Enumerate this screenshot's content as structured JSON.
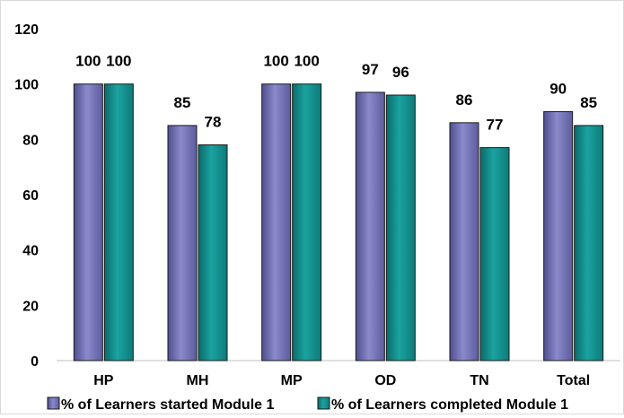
{
  "chart_data": {
    "type": "bar",
    "title": "",
    "xlabel": "",
    "ylabel": "",
    "categories": [
      "HP",
      "MH",
      "MP",
      "OD",
      "TN",
      "Total"
    ],
    "series": [
      {
        "name": "% of Learners started Module 1",
        "values": [
          100,
          85,
          100,
          97,
          86,
          90
        ],
        "color": "#6f6fb0"
      },
      {
        "name": "% of Learners completed Module 1",
        "values": [
          100,
          78,
          100,
          96,
          77,
          85
        ],
        "color": "#138c8c"
      }
    ],
    "data_labels": [
      [
        "100",
        "85",
        "100",
        "97",
        "86",
        "90"
      ],
      [
        "100",
        "78",
        "100",
        "96",
        "77",
        "85"
      ]
    ],
    "ylim": [
      0,
      120
    ],
    "yticks": [
      "0",
      "20",
      "40",
      "60",
      "80",
      "100",
      "120"
    ],
    "grid": false,
    "legend": "bottom"
  }
}
